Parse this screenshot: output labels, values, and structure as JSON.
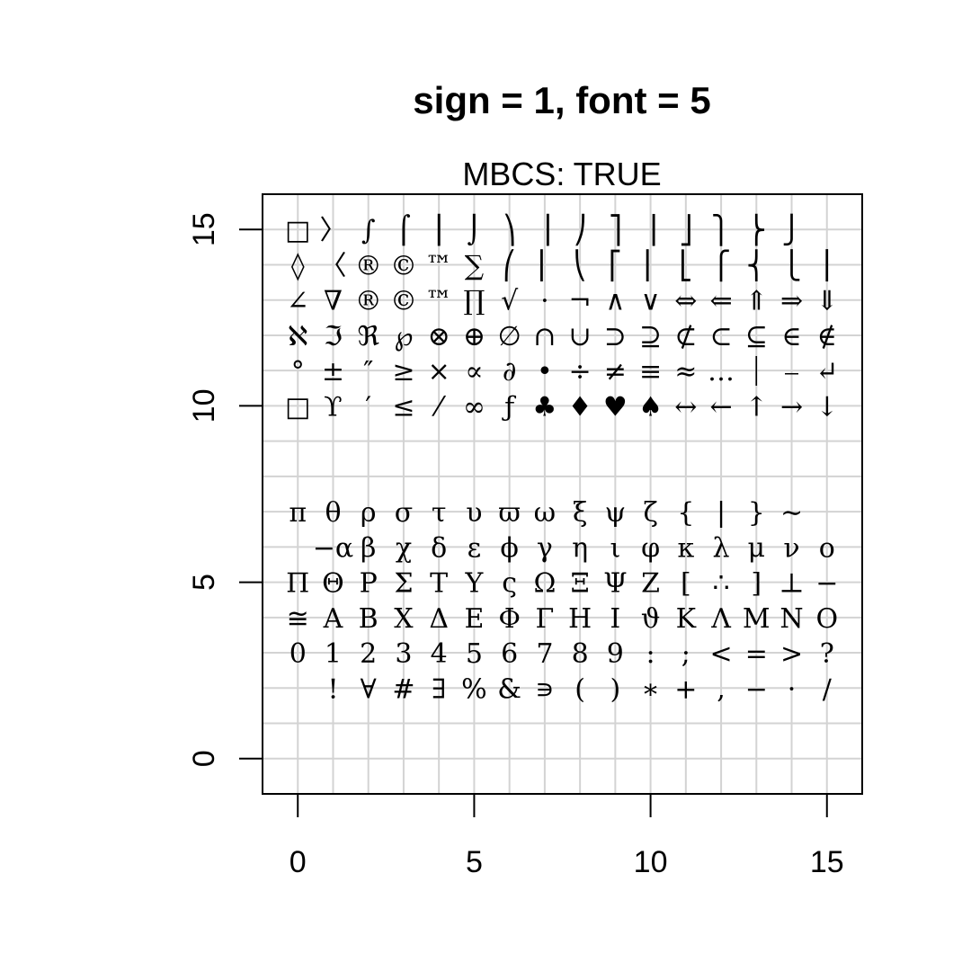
{
  "chart_data": {
    "type": "scatter",
    "title": "sign = 1, font = 5",
    "subtitle": "MBCS: TRUE",
    "xlabel": "",
    "ylabel": "",
    "xlim": [
      -1,
      16
    ],
    "ylim": [
      -1,
      16
    ],
    "x_ticks": [
      0,
      5,
      10,
      15
    ],
    "y_ticks": [
      0,
      5,
      10,
      15
    ],
    "grid": true,
    "rows": [
      {
        "y": 15,
        "x": [
          0,
          1,
          2,
          3,
          4,
          5,
          6,
          7,
          8,
          9,
          10,
          11,
          12,
          13,
          14,
          15
        ],
        "glyphs": [
          "□",
          "〉",
          "∫",
          "⌠",
          "⎮",
          "⌡",
          "⎞",
          "⎟",
          "⎠",
          "⎤",
          "⎥",
          "⎦",
          "⎫",
          "⎬",
          "⎭",
          ""
        ]
      },
      {
        "y": 14,
        "x": [
          0,
          1,
          2,
          3,
          4,
          5,
          6,
          7,
          8,
          9,
          10,
          11,
          12,
          13,
          14,
          15
        ],
        "glyphs": [
          "◊",
          "〈",
          "®",
          "©",
          "™",
          "∑",
          "⎛",
          "⎜",
          "⎝",
          "⎡",
          "⎢",
          "⎣",
          "⎧",
          "⎨",
          "⎩",
          "⎪"
        ]
      },
      {
        "y": 13,
        "x": [
          0,
          1,
          2,
          3,
          4,
          5,
          6,
          7,
          8,
          9,
          10,
          11,
          12,
          13,
          14,
          15
        ],
        "glyphs": [
          "∠",
          "∇",
          "®",
          "©",
          "™",
          "∏",
          "√",
          "·",
          "¬",
          "∧",
          "∨",
          "⇔",
          "⇐",
          "⇑",
          "⇒",
          "⇓"
        ]
      },
      {
        "y": 12,
        "x": [
          0,
          1,
          2,
          3,
          4,
          5,
          6,
          7,
          8,
          9,
          10,
          11,
          12,
          13,
          14,
          15
        ],
        "glyphs": [
          "ℵ",
          "ℑ",
          "ℜ",
          "℘",
          "⊗",
          "⊕",
          "∅",
          "∩",
          "∪",
          "⊃",
          "⊇",
          "⊄",
          "⊂",
          "⊆",
          "∈",
          "∉"
        ]
      },
      {
        "y": 11,
        "x": [
          0,
          1,
          2,
          3,
          4,
          5,
          6,
          7,
          8,
          9,
          10,
          11,
          12,
          13,
          14,
          15
        ],
        "glyphs": [
          "°",
          "±",
          "″",
          "≥",
          "×",
          "∝",
          "∂",
          "•",
          "÷",
          "≠",
          "≡",
          "≈",
          "…",
          "⏐",
          "⎯",
          "↵"
        ]
      },
      {
        "y": 10,
        "x": [
          0,
          1,
          2,
          3,
          4,
          5,
          6,
          7,
          8,
          9,
          10,
          11,
          12,
          13,
          14,
          15
        ],
        "glyphs": [
          "□",
          "ϒ",
          "′",
          "≤",
          "⁄",
          "∞",
          "ƒ",
          "♣",
          "♦",
          "♥",
          "♠",
          "↔",
          "←",
          "↑",
          "→",
          "↓"
        ]
      },
      {
        "y": 7,
        "x": [
          0,
          1,
          2,
          3,
          4,
          5,
          6,
          7,
          8,
          9,
          10,
          11,
          12,
          13,
          14,
          15
        ],
        "glyphs": [
          "π",
          "θ",
          "ρ",
          "σ",
          "τ",
          "υ",
          "ϖ",
          "ω",
          "ξ",
          "ψ",
          "ζ",
          "{",
          "|",
          "}",
          "∼",
          ""
        ]
      },
      {
        "y": 6,
        "x": [
          0,
          1,
          2,
          3,
          4,
          5,
          6,
          7,
          8,
          9,
          10,
          11,
          12,
          13,
          14,
          15
        ],
        "glyphs": [
          "",
          "−α",
          "β",
          "χ",
          "δ",
          "ε",
          "ϕ",
          "γ",
          "η",
          "ι",
          "φ",
          "κ",
          "λ",
          "μ",
          "ν",
          "ο"
        ]
      },
      {
        "y": 5,
        "x": [
          0,
          1,
          2,
          3,
          4,
          5,
          6,
          7,
          8,
          9,
          10,
          11,
          12,
          13,
          14,
          15
        ],
        "glyphs": [
          "Π",
          "Θ",
          "Ρ",
          "Σ",
          "Τ",
          "Υ",
          "ς",
          "Ω",
          "Ξ",
          "Ψ",
          "Ζ",
          "[",
          "∴",
          "]",
          "⊥",
          "−"
        ]
      },
      {
        "y": 4,
        "x": [
          0,
          1,
          2,
          3,
          4,
          5,
          6,
          7,
          8,
          9,
          10,
          11,
          12,
          13,
          14,
          15
        ],
        "glyphs": [
          "≅",
          "Α",
          "Β",
          "Χ",
          "Δ",
          "Ε",
          "Φ",
          "Γ",
          "Η",
          "Ι",
          "ϑ",
          "Κ",
          "Λ",
          "Μ",
          "Ν",
          "Ο"
        ]
      },
      {
        "y": 3,
        "x": [
          0,
          1,
          2,
          3,
          4,
          5,
          6,
          7,
          8,
          9,
          10,
          11,
          12,
          13,
          14,
          15
        ],
        "glyphs": [
          "0",
          "1",
          "2",
          "3",
          "4",
          "5",
          "6",
          "7",
          "8",
          "9",
          ":",
          ";",
          "<",
          "=",
          ">",
          "?"
        ]
      },
      {
        "y": 2,
        "x": [
          0,
          1,
          2,
          3,
          4,
          5,
          6,
          7,
          8,
          9,
          10,
          11,
          12,
          13,
          14,
          15
        ],
        "glyphs": [
          "",
          "!",
          "∀",
          "#",
          "∃",
          "%",
          "&",
          "∍",
          "(",
          ")",
          "∗",
          "+",
          ",",
          "−",
          "·",
          "/"
        ]
      }
    ]
  }
}
